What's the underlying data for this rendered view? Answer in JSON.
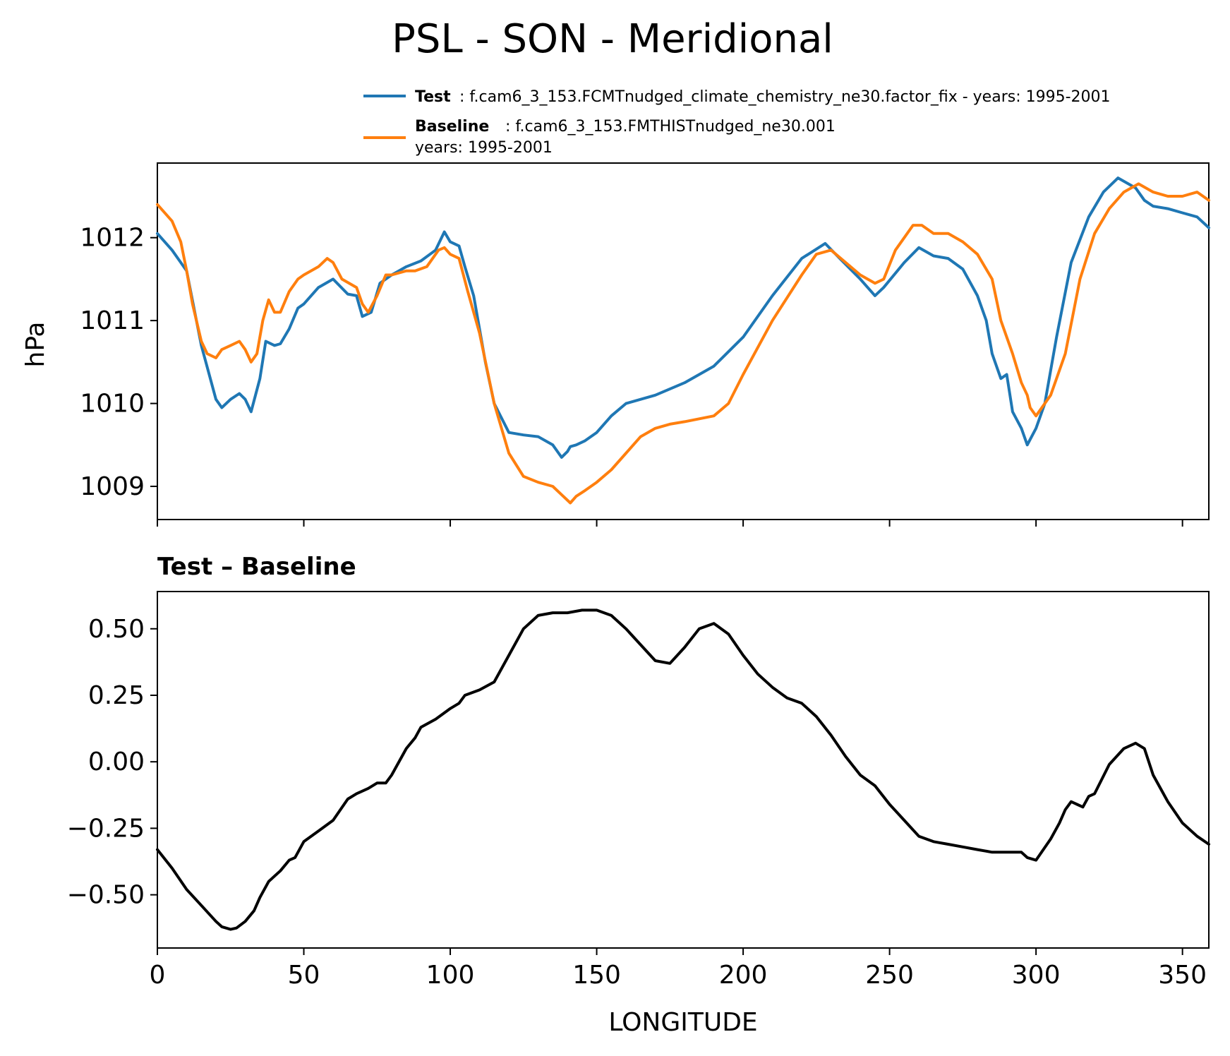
{
  "title": "PSL - SON - Meridional",
  "legend": {
    "test_name": "Test",
    "test_desc": ": f.cam6_3_153.FCMTnudged_climate_chemistry_ne30.factor_fix - years: 1995-2001",
    "baseline_name": "Baseline",
    "baseline_desc": ": f.cam6_3_153.FMTHISTnudged_ne30.001",
    "baseline_desc2": "years: 1995-2001"
  },
  "colors": {
    "test": "#1f77b4",
    "baseline": "#ff7f0e",
    "diff": "#000000"
  },
  "chart_data": [
    {
      "type": "line",
      "ylabel": "hPa",
      "xlabel": "",
      "xlim": [
        0,
        359
      ],
      "ylim": [
        1008.6,
        1012.9
      ],
      "yticks": [
        "1009",
        "1010",
        "1011",
        "1012"
      ],
      "ytick_values": [
        1009,
        1010,
        1011,
        1012
      ],
      "xtick_values": [
        0,
        50,
        100,
        150,
        200,
        250,
        300,
        350
      ],
      "series": [
        {
          "name": "Test",
          "x": [
            0,
            5,
            10,
            15,
            20,
            22,
            25,
            28,
            30,
            32,
            35,
            37,
            40,
            42,
            45,
            48,
            50,
            55,
            60,
            65,
            68,
            70,
            73,
            76,
            80,
            85,
            90,
            95,
            98,
            100,
            103,
            105,
            108,
            112,
            115,
            120,
            125,
            130,
            135,
            138,
            140,
            141,
            143,
            146,
            150,
            155,
            160,
            170,
            180,
            190,
            200,
            210,
            220,
            228,
            233,
            240,
            245,
            248,
            255,
            260,
            265,
            270,
            275,
            280,
            283,
            285,
            288,
            290,
            292,
            295,
            297,
            300,
            303,
            307,
            312,
            318,
            323,
            328,
            334,
            337,
            340,
            345,
            350,
            355,
            359
          ],
          "values": [
            1012.05,
            1011.85,
            1011.6,
            1010.7,
            1010.05,
            1009.95,
            1010.05,
            1010.12,
            1010.05,
            1009.9,
            1010.3,
            1010.75,
            1010.7,
            1010.72,
            1010.9,
            1011.15,
            1011.2,
            1011.4,
            1011.5,
            1011.32,
            1011.3,
            1011.05,
            1011.1,
            1011.45,
            1011.55,
            1011.65,
            1011.72,
            1011.85,
            1012.07,
            1011.95,
            1011.9,
            1011.65,
            1011.3,
            1010.5,
            1010.0,
            1009.65,
            1009.62,
            1009.6,
            1009.5,
            1009.35,
            1009.42,
            1009.48,
            1009.5,
            1009.55,
            1009.65,
            1009.85,
            1010.0,
            1010.1,
            1010.25,
            1010.45,
            1010.8,
            1011.3,
            1011.75,
            1011.93,
            1011.75,
            1011.5,
            1011.3,
            1011.4,
            1011.7,
            1011.88,
            1011.78,
            1011.75,
            1011.62,
            1011.3,
            1011.0,
            1010.6,
            1010.3,
            1010.35,
            1009.9,
            1009.7,
            1009.5,
            1009.7,
            1010.0,
            1010.8,
            1011.7,
            1012.25,
            1012.55,
            1012.72,
            1012.6,
            1012.45,
            1012.38,
            1012.35,
            1012.3,
            1012.25,
            1012.12
          ]
        },
        {
          "name": "Baseline",
          "x": [
            0,
            5,
            8,
            10,
            12,
            15,
            17,
            20,
            22,
            25,
            28,
            30,
            32,
            34,
            36,
            38,
            40,
            42,
            45,
            48,
            50,
            55,
            58,
            60,
            63,
            68,
            70,
            72,
            75,
            78,
            80,
            85,
            88,
            92,
            96,
            98,
            100,
            103,
            106,
            110,
            115,
            120,
            125,
            130,
            135,
            138,
            141,
            143,
            146,
            150,
            155,
            160,
            165,
            170,
            175,
            180,
            190,
            195,
            200,
            210,
            220,
            225,
            230,
            240,
            245,
            248,
            252,
            255,
            258,
            261,
            265,
            270,
            275,
            280,
            285,
            288,
            290,
            292,
            295,
            297,
            298,
            300,
            305,
            310,
            315,
            320,
            325,
            330,
            335,
            340,
            345,
            350,
            355,
            359
          ],
          "values": [
            1012.4,
            1012.2,
            1011.95,
            1011.6,
            1011.2,
            1010.75,
            1010.6,
            1010.55,
            1010.65,
            1010.7,
            1010.75,
            1010.65,
            1010.5,
            1010.6,
            1011.0,
            1011.25,
            1011.1,
            1011.1,
            1011.35,
            1011.5,
            1011.55,
            1011.65,
            1011.75,
            1011.7,
            1011.5,
            1011.4,
            1011.2,
            1011.1,
            1011.3,
            1011.55,
            1011.55,
            1011.6,
            1011.6,
            1011.65,
            1011.85,
            1011.88,
            1011.8,
            1011.75,
            1011.35,
            1010.85,
            1010.0,
            1009.4,
            1009.12,
            1009.05,
            1009.0,
            1008.9,
            1008.8,
            1008.88,
            1008.95,
            1009.05,
            1009.2,
            1009.4,
            1009.6,
            1009.7,
            1009.75,
            1009.78,
            1009.85,
            1010.0,
            1010.35,
            1011.0,
            1011.55,
            1011.8,
            1011.85,
            1011.55,
            1011.45,
            1011.5,
            1011.85,
            1012.0,
            1012.15,
            1012.15,
            1012.05,
            1012.05,
            1011.95,
            1011.8,
            1011.5,
            1011.0,
            1010.8,
            1010.6,
            1010.25,
            1010.1,
            1009.95,
            1009.85,
            1010.1,
            1010.6,
            1011.5,
            1012.05,
            1012.35,
            1012.55,
            1012.65,
            1012.55,
            1012.5,
            1012.5,
            1012.55,
            1012.45
          ]
        }
      ]
    },
    {
      "type": "line",
      "title": "Test – Baseline",
      "xlabel": "LONGITUDE",
      "ylabel": "",
      "xlim": [
        0,
        359
      ],
      "ylim": [
        -0.7,
        0.64
      ],
      "yticks": [
        "0.50",
        "0.25",
        "0.00",
        "−0.25",
        "−0.50"
      ],
      "ytick_values": [
        0.5,
        0.25,
        0.0,
        -0.25,
        -0.5
      ],
      "xticks": [
        "0",
        "50",
        "100",
        "150",
        "200",
        "250",
        "300",
        "350"
      ],
      "xtick_values": [
        0,
        50,
        100,
        150,
        200,
        250,
        300,
        350
      ],
      "series": [
        {
          "name": "Test – Baseline",
          "x": [
            0,
            5,
            10,
            15,
            20,
            22,
            25,
            27,
            30,
            33,
            35,
            38,
            40,
            42,
            45,
            47,
            50,
            55,
            60,
            65,
            68,
            72,
            75,
            78,
            80,
            85,
            88,
            90,
            95,
            100,
            103,
            105,
            110,
            115,
            120,
            125,
            130,
            135,
            140,
            145,
            150,
            155,
            160,
            165,
            170,
            175,
            180,
            185,
            190,
            195,
            200,
            205,
            210,
            215,
            220,
            225,
            230,
            235,
            240,
            245,
            250,
            255,
            260,
            265,
            270,
            275,
            280,
            285,
            290,
            295,
            297,
            300,
            305,
            308,
            310,
            312,
            314,
            316,
            318,
            320,
            325,
            330,
            334,
            337,
            340,
            345,
            350,
            355,
            359
          ],
          "values": [
            -0.33,
            -0.4,
            -0.48,
            -0.54,
            -0.6,
            -0.62,
            -0.63,
            -0.625,
            -0.6,
            -0.56,
            -0.51,
            -0.45,
            -0.43,
            -0.41,
            -0.37,
            -0.36,
            -0.3,
            -0.26,
            -0.22,
            -0.14,
            -0.12,
            -0.1,
            -0.08,
            -0.08,
            -0.05,
            0.05,
            0.09,
            0.13,
            0.16,
            0.2,
            0.22,
            0.25,
            0.27,
            0.3,
            0.4,
            0.5,
            0.55,
            0.56,
            0.56,
            0.57,
            0.57,
            0.55,
            0.5,
            0.44,
            0.38,
            0.37,
            0.43,
            0.5,
            0.52,
            0.48,
            0.4,
            0.33,
            0.28,
            0.24,
            0.22,
            0.17,
            0.1,
            0.02,
            -0.05,
            -0.09,
            -0.16,
            -0.22,
            -0.28,
            -0.3,
            -0.31,
            -0.32,
            -0.33,
            -0.34,
            -0.34,
            -0.34,
            -0.36,
            -0.37,
            -0.29,
            -0.23,
            -0.18,
            -0.15,
            -0.16,
            -0.17,
            -0.13,
            -0.12,
            -0.01,
            0.05,
            0.07,
            0.05,
            -0.05,
            -0.15,
            -0.23,
            -0.28,
            -0.31
          ]
        }
      ]
    }
  ]
}
